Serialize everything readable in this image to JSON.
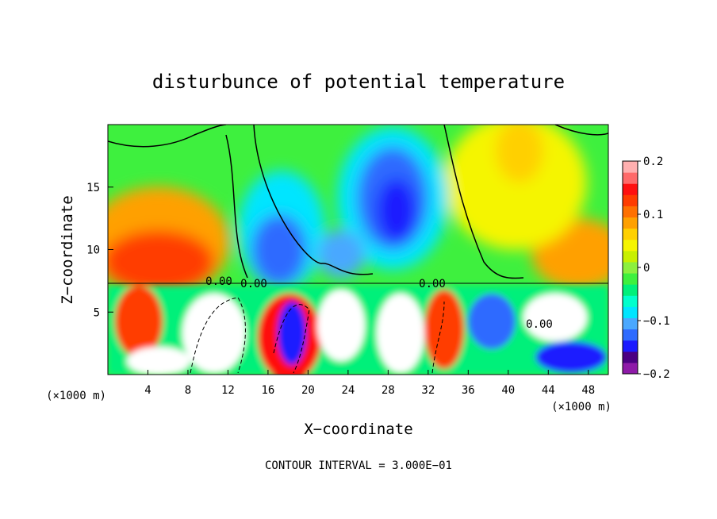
{
  "chart_data": {
    "type": "heatmap",
    "title": "disturbunce of potential temperature",
    "xlabel": "X−coordinate",
    "ylabel": "Z−coordinate",
    "x_unit": "(×1000 m)",
    "x_unit_right": "(×1000 m)",
    "xlim": [
      0,
      50
    ],
    "ylim": [
      0,
      20
    ],
    "x_ticks": [
      4,
      8,
      12,
      16,
      20,
      24,
      28,
      32,
      36,
      40,
      44,
      48
    ],
    "y_ticks": [
      5,
      10,
      15
    ],
    "colorbar": {
      "min": -0.2,
      "max": 0.2,
      "ticks": [
        0.2,
        0.1,
        0,
        -0.1,
        -0.2
      ],
      "tick_labels": [
        "0.2",
        "0.1",
        "0",
        "−0.1",
        "−0.2"
      ],
      "colors": [
        "#8e1aa8",
        "#4b0082",
        "#1a1aff",
        "#2e6bff",
        "#4aa8ff",
        "#00e5ff",
        "#00ffcc",
        "#00f07a",
        "#3ef03e",
        "#8cf03e",
        "#c8f000",
        "#f5f500",
        "#ffd000",
        "#ffa000",
        "#ff7000",
        "#ff3c00",
        "#ff1010",
        "#ff6a6a",
        "#ffb0b0"
      ]
    },
    "contour_labels": [
      "0.00",
      "0.00",
      "0.00",
      "0.00"
    ],
    "contour_interval_text": "CONTOUR INTERVAL = 3.000E−01",
    "grid": false
  }
}
